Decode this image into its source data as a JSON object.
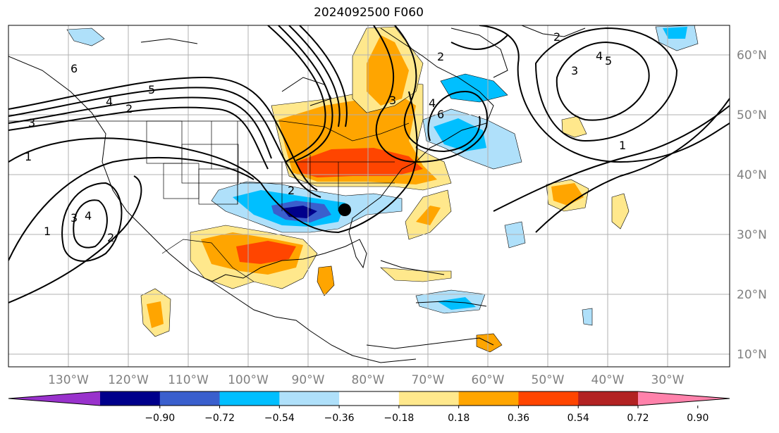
{
  "title": "2024092500 F060",
  "map": {
    "lat_labels": [
      "60°N",
      "50°N",
      "40°N",
      "30°N",
      "20°N",
      "10°N"
    ],
    "lon_labels": [
      "130°W",
      "120°W",
      "110°W",
      "100°W",
      "90°W",
      "80°W",
      "70°W",
      "60°W",
      "50°W",
      "40°W",
      "30°W"
    ],
    "contour_labels": [
      "6",
      "5",
      "4",
      "3",
      "2",
      "1",
      "3",
      "4",
      "2",
      "1",
      "2",
      "3",
      "4",
      "6",
      "2",
      "3",
      "4",
      "5",
      "1",
      "2"
    ],
    "marker": "storm-center-dot"
  },
  "colorbar": {
    "tick_labels": [
      "−0.90",
      "−0.72",
      "−0.54",
      "−0.36",
      "−0.18",
      "0.18",
      "0.36",
      "0.54",
      "0.72",
      "0.90"
    ],
    "colors": [
      "#9932cc",
      "#00008b",
      "#3a5fcd",
      "#00bfff",
      "#afe0fa",
      "#ffffff",
      "#ffe88c",
      "#ffa500",
      "#ff4500",
      "#b22222",
      "#ff82ab"
    ]
  }
}
